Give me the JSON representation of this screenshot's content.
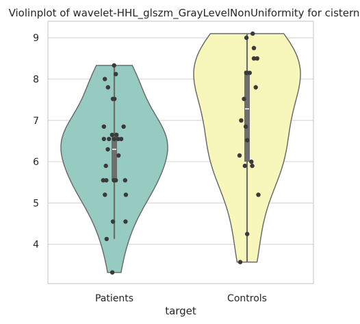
{
  "chart_data": {
    "type": "violin",
    "title": "Violinplot of wavelet-HHL_glszm_GrayLevelNonUniformity for cistern",
    "xlabel": "target",
    "ylabel": "",
    "categories": [
      "Patients",
      "Controls"
    ],
    "ylim": [
      3.05,
      9.4
    ],
    "yticks": [
      4,
      5,
      6,
      7,
      8,
      9
    ],
    "grid": true,
    "colors": {
      "Patients": "#95cbc1",
      "Controls": "#f7f6bb",
      "outline": "#6b6b6b",
      "points": "#3a3a3a",
      "box": "#6e6e6e",
      "grid": "#d9d9d9"
    },
    "series": [
      {
        "category": "Patients",
        "points": [
          8.33,
          8.12,
          8.0,
          7.8,
          7.52,
          7.52,
          6.85,
          6.85,
          6.65,
          6.65,
          6.55,
          6.55,
          6.55,
          6.55,
          6.55,
          6.3,
          6.15,
          5.9,
          5.55,
          5.55,
          5.55,
          5.55,
          5.55,
          5.2,
          5.2,
          4.55,
          4.55,
          4.13,
          3.32
        ],
        "quartiles": [
          5.55,
          6.3,
          6.7
        ],
        "whisker_low": 4.13,
        "whisker_high": 8.33
      },
      {
        "category": "Controls",
        "points": [
          9.1,
          9.0,
          8.75,
          8.5,
          8.5,
          8.15,
          8.15,
          8.15,
          8.15,
          7.8,
          7.52,
          7.0,
          6.85,
          6.52,
          6.15,
          6.0,
          5.9,
          5.9,
          5.2,
          4.25,
          3.57
        ],
        "quartiles": [
          6.0,
          7.28,
          8.2
        ],
        "whisker_low": 3.57,
        "whisker_high": 9.1
      }
    ]
  }
}
